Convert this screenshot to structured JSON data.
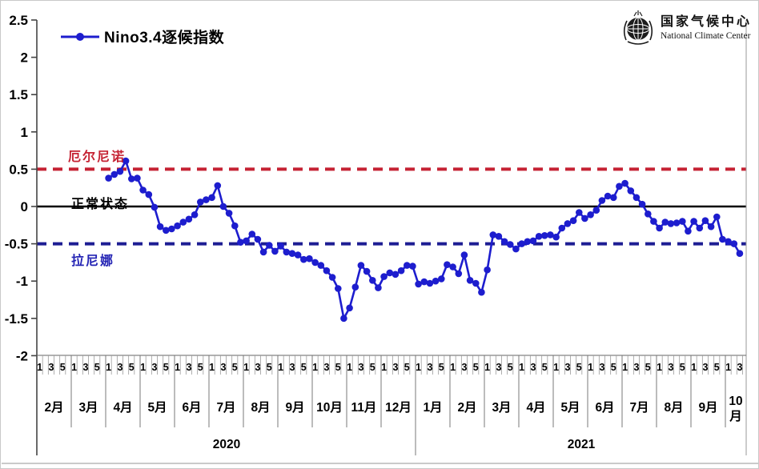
{
  "header": {
    "logo_cn": "国家气候中心",
    "logo_en": "National Climate Center"
  },
  "annotations": {
    "el_nino": "厄尔尼诺",
    "normal": "正常状态",
    "la_nina": "拉尼娜"
  },
  "chart_data": {
    "type": "line",
    "title": "Nino3.4逐候指数",
    "xlabel": "",
    "ylabel": "",
    "ylim": [
      -2,
      2.5
    ],
    "grid": false,
    "legend_position": "top-left",
    "y_ticks": [
      "2.5",
      "2",
      "1.5",
      "1",
      "0.5",
      "0",
      "-0.5",
      "-1",
      "-1.5",
      "-2"
    ],
    "reference_lines": [
      {
        "label": "厄尔尼诺",
        "value": 0.5,
        "color": "#c52233",
        "style": "dashed"
      },
      {
        "label": "正常状态",
        "value": 0,
        "color": "#000000",
        "style": "solid"
      },
      {
        "label": "拉尼娜",
        "value": -0.5,
        "color": "#1d1d93",
        "style": "dashed"
      }
    ],
    "x_axis": {
      "pentad_tick_labels": [
        "1",
        "3",
        "5"
      ],
      "pentads_per_month": 6,
      "years": [
        {
          "label": "2020",
          "months": [
            "2月",
            "3月",
            "4月",
            "5月",
            "6月",
            "7月",
            "8月",
            "9月",
            "10月",
            "11月",
            "12月"
          ]
        },
        {
          "label": "2021",
          "months": [
            "1月",
            "2月",
            "3月",
            "4月",
            "5月",
            "6月",
            "7月",
            "8月",
            "9月",
            "10月"
          ]
        }
      ]
    },
    "series_start_month_index": 2,
    "series": [
      {
        "name": "Nino3.4逐候指数",
        "color": "#1d1dce",
        "start": "2020年4月第1候",
        "values": [
          0.38,
          0.43,
          0.47,
          0.61,
          0.37,
          0.38,
          0.22,
          0.16,
          -0.01,
          -0.27,
          -0.32,
          -0.3,
          -0.26,
          -0.21,
          -0.17,
          -0.11,
          0.06,
          0.09,
          0.12,
          0.28,
          0.0,
          -0.09,
          -0.26,
          -0.48,
          -0.46,
          -0.37,
          -0.44,
          -0.61,
          -0.52,
          -0.6,
          -0.53,
          -0.61,
          -0.63,
          -0.65,
          -0.71,
          -0.7,
          -0.75,
          -0.79,
          -0.86,
          -0.95,
          -1.1,
          -1.5,
          -1.36,
          -1.08,
          -0.79,
          -0.87,
          -0.99,
          -1.09,
          -0.94,
          -0.89,
          -0.91,
          -0.86,
          -0.79,
          -0.8,
          -1.04,
          -1.01,
          -1.03,
          -1.0,
          -0.97,
          -0.78,
          -0.81,
          -0.9,
          -0.65,
          -0.99,
          -1.03,
          -1.15,
          -0.85,
          -0.38,
          -0.4,
          -0.47,
          -0.51,
          -0.57,
          -0.5,
          -0.47,
          -0.46,
          -0.4,
          -0.39,
          -0.38,
          -0.41,
          -0.29,
          -0.23,
          -0.19,
          -0.08,
          -0.16,
          -0.11,
          -0.05,
          0.08,
          0.14,
          0.12,
          0.27,
          0.31,
          0.21,
          0.12,
          0.03,
          -0.1,
          -0.2,
          -0.29,
          -0.21,
          -0.23,
          -0.22,
          -0.2,
          -0.33,
          -0.2,
          -0.29,
          -0.19,
          -0.27,
          -0.14,
          -0.44,
          -0.47,
          -0.5,
          -0.63
        ]
      }
    ]
  }
}
